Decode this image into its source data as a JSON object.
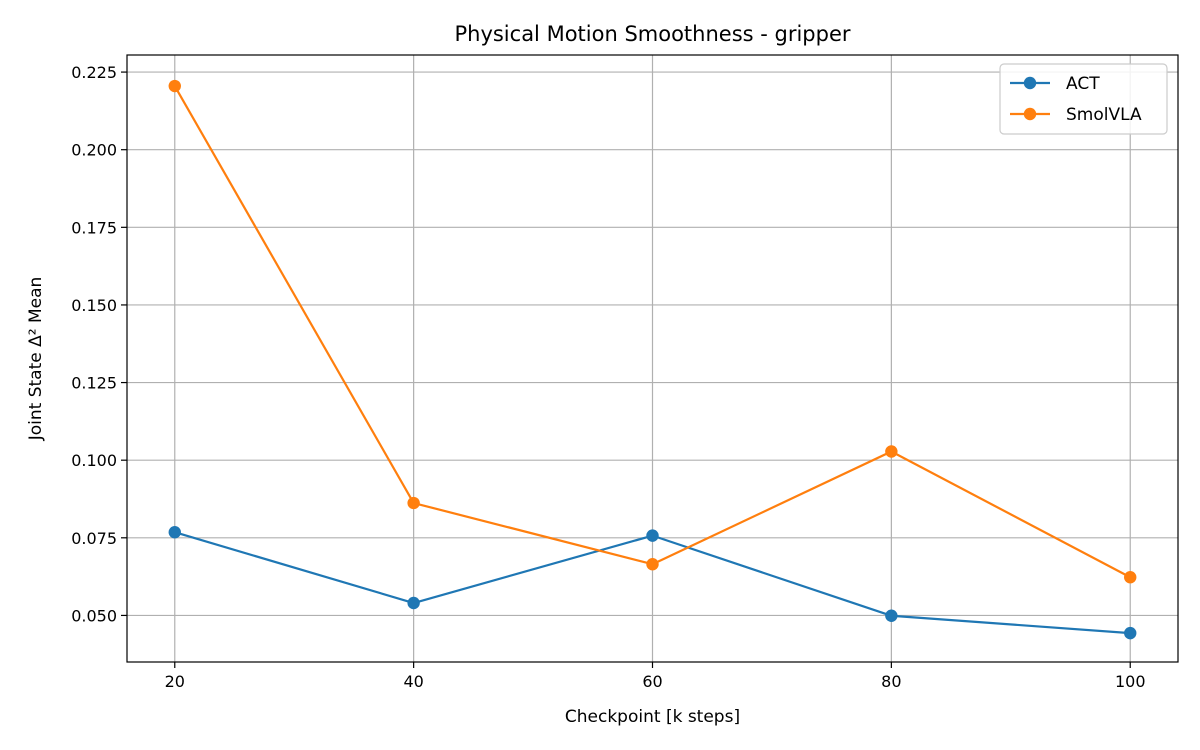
{
  "chart_data": {
    "type": "line",
    "title": "Physical Motion Smoothness - gripper",
    "xlabel": "Checkpoint [k steps]",
    "ylabel": "Joint State Δ² Mean",
    "x": [
      20,
      40,
      60,
      80,
      100
    ],
    "xlim": [
      16,
      104
    ],
    "ylim": [
      0.035,
      0.2305
    ],
    "x_ticks": [
      20,
      40,
      60,
      80,
      100
    ],
    "x_tick_labels": [
      "20",
      "40",
      "60",
      "80",
      "100"
    ],
    "y_ticks": [
      0.05,
      0.075,
      0.1,
      0.125,
      0.15,
      0.175,
      0.2,
      0.225
    ],
    "y_tick_labels": [
      "0.050",
      "0.075",
      "0.100",
      "0.125",
      "0.150",
      "0.175",
      "0.200",
      "0.225"
    ],
    "grid": true,
    "legend_position": "top-right",
    "series": [
      {
        "name": "ACT",
        "color": "#1f77b4",
        "values": [
          0.0768,
          0.054,
          0.0757,
          0.0499,
          0.0443
        ]
      },
      {
        "name": "SmolVLA",
        "color": "#ff7f0e",
        "values": [
          0.2205,
          0.0862,
          0.0665,
          0.1028,
          0.0623
        ]
      }
    ]
  }
}
